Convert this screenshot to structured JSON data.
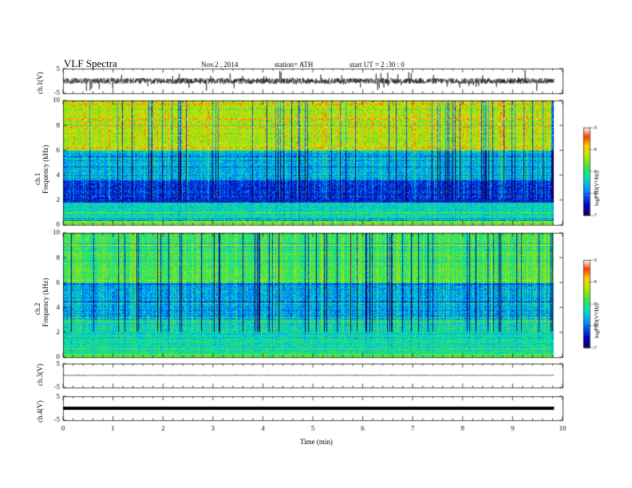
{
  "header": {
    "title": "VLF Spectra",
    "date": "Nov.2  , 2014",
    "station": "station= ATH",
    "start": "start  UT  =   2  :30 : 0"
  },
  "chart_data": [
    {
      "type": "line",
      "name": "ch1-waveform",
      "ylabel": "ch.1(V)",
      "ylim": [
        -5,
        5
      ],
      "yticks": [
        "5",
        "-5"
      ],
      "xlim": [
        0,
        10
      ],
      "data_xlim": [
        0,
        9.83
      ],
      "approx_level": 0.0,
      "approx_noise_amplitude": 1.2,
      "approx_spike_amplitude": 3.5
    },
    {
      "type": "heatmap",
      "name": "ch1-spectrogram",
      "ylabel": "ch.1\nFrequency  (kHz)",
      "ylim": [
        0,
        10
      ],
      "xlim": [
        0,
        10
      ],
      "data_xlim": [
        0,
        9.83
      ],
      "yticks": [
        "0",
        "2",
        "4",
        "6",
        "8",
        "10"
      ],
      "colorbar": {
        "label": "logPSD(V²/Hz)",
        "ticks": [
          "-3",
          "-4",
          "-5",
          "-6",
          "-7"
        ],
        "range": [
          -7,
          -3
        ]
      },
      "approx_logpsd_by_freq_band": [
        {
          "freq_khz": [
            0,
            0.3
          ],
          "logpsd": -4.6
        },
        {
          "freq_khz": [
            0.3,
            1.8
          ],
          "logpsd": -5.3
        },
        {
          "freq_khz": [
            1.8,
            3.6
          ],
          "logpsd": -6.3
        },
        {
          "freq_khz": [
            3.6,
            6.0
          ],
          "logpsd": -5.6
        },
        {
          "freq_khz": [
            6.0,
            10.0
          ],
          "logpsd": -4.3
        }
      ]
    },
    {
      "type": "heatmap",
      "name": "ch2-spectrogram",
      "ylabel": "ch.2\nFrequency  (kHz)",
      "ylim": [
        0,
        10
      ],
      "xlim": [
        0,
        10
      ],
      "data_xlim": [
        0,
        9.83
      ],
      "yticks": [
        "0",
        "2",
        "4",
        "6",
        "8",
        "10"
      ],
      "colorbar": {
        "label": "logPSD(V²/Hz)",
        "ticks": [
          "-3",
          "-4",
          "-5",
          "-6",
          "-7"
        ],
        "range": [
          -7,
          -3
        ]
      },
      "approx_logpsd_by_freq_band": [
        {
          "freq_khz": [
            0,
            0.3
          ],
          "logpsd": -4.7
        },
        {
          "freq_khz": [
            0.3,
            1.8
          ],
          "logpsd": -5.2
        },
        {
          "freq_khz": [
            1.8,
            3.0
          ],
          "logpsd": -5.3
        },
        {
          "freq_khz": [
            3.0,
            6.0
          ],
          "logpsd": -5.7
        },
        {
          "freq_khz": [
            6.0,
            10.0
          ],
          "logpsd": -4.9
        }
      ]
    },
    {
      "type": "line",
      "name": "ch3-waveform",
      "ylabel": "ch.3(V)",
      "ylim": [
        -5,
        5
      ],
      "yticks": [
        "5",
        "-5"
      ],
      "xlim": [
        0,
        10
      ],
      "data_xlim": [
        0,
        9.83
      ],
      "approx_level": 0.1,
      "approx_noise_amplitude": 0.15
    },
    {
      "type": "line",
      "name": "ch4-waveform",
      "ylabel": "ch.4(V)",
      "ylim": [
        -5,
        5
      ],
      "yticks": [
        "5",
        "-5"
      ],
      "xlim": [
        0,
        10
      ],
      "data_xlim": [
        0,
        9.83
      ],
      "approx_level": 0.0,
      "approx_noise_amplitude": 0.0
    }
  ],
  "x_axis": {
    "label": "Time  (min)",
    "ticks": [
      "0",
      "1",
      "2",
      "3",
      "4",
      "5",
      "6",
      "7",
      "8",
      "9",
      "10"
    ]
  }
}
